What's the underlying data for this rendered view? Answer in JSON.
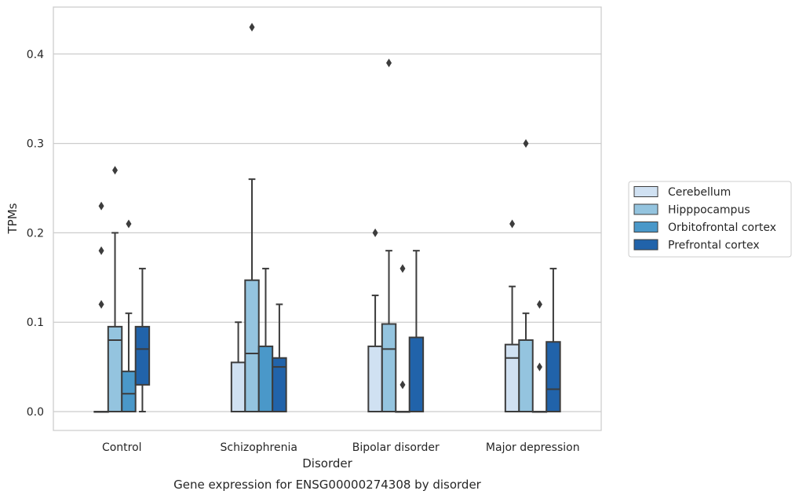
{
  "chart_data": {
    "type": "box",
    "caption": "Gene expression for ENSG00000274308 by disorder",
    "xlabel": "Disorder",
    "ylabel": "TPMs",
    "ylim": [
      -0.021,
      0.454
    ],
    "yticks": [
      "0.0",
      "0.1",
      "0.2",
      "0.3",
      "0.4"
    ],
    "grid": "horizontal",
    "legend_position": "right",
    "categories": [
      "Control",
      "Schizophrenia",
      "Bipolar disorder",
      "Major depression"
    ],
    "series": [
      {
        "name": "Cerebellum",
        "color": "#d0e1f2",
        "boxes": [
          {
            "q1": 0,
            "median": 0,
            "q3": 0,
            "whisker_low": 0,
            "whisker_high": 0,
            "outliers": [
              0.12,
              0.18,
              0.23
            ]
          },
          {
            "q1": 0,
            "median": 0,
            "q3": 0.055,
            "whisker_low": 0,
            "whisker_high": 0.1,
            "outliers": []
          },
          {
            "q1": 0,
            "median": 0,
            "q3": 0.073,
            "whisker_low": 0,
            "whisker_high": 0.13,
            "outliers": [
              0.2
            ]
          },
          {
            "q1": 0,
            "median": 0.06,
            "q3": 0.075,
            "whisker_low": 0,
            "whisker_high": 0.14,
            "outliers": [
              0.21
            ]
          }
        ]
      },
      {
        "name": "Hipppocampus",
        "color": "#94c4df",
        "boxes": [
          {
            "q1": 0,
            "median": 0.08,
            "q3": 0.095,
            "whisker_low": 0,
            "whisker_high": 0.2,
            "outliers": [
              0.27
            ]
          },
          {
            "q1": 0,
            "median": 0.065,
            "q3": 0.147,
            "whisker_low": 0,
            "whisker_high": 0.26,
            "outliers": [
              0.43
            ]
          },
          {
            "q1": 0,
            "median": 0.07,
            "q3": 0.098,
            "whisker_low": 0,
            "whisker_high": 0.18,
            "outliers": [
              0.39
            ]
          },
          {
            "q1": 0,
            "median": 0,
            "q3": 0.08,
            "whisker_low": 0,
            "whisker_high": 0.11,
            "outliers": [
              0.3
            ]
          }
        ]
      },
      {
        "name": "Orbitofrontal cortex",
        "color": "#4a98c9",
        "boxes": [
          {
            "q1": 0,
            "median": 0.02,
            "q3": 0.045,
            "whisker_low": 0,
            "whisker_high": 0.11,
            "outliers": [
              0.21
            ]
          },
          {
            "q1": 0,
            "median": 0,
            "q3": 0.073,
            "whisker_low": 0,
            "whisker_high": 0.16,
            "outliers": []
          },
          {
            "q1": 0,
            "median": 0,
            "q3": 0,
            "whisker_low": 0,
            "whisker_high": 0,
            "outliers": [
              0.03,
              0.16
            ]
          },
          {
            "q1": 0,
            "median": 0,
            "q3": 0,
            "whisker_low": 0,
            "whisker_high": 0,
            "outliers": [
              0.05,
              0.12
            ]
          }
        ]
      },
      {
        "name": "Prefrontal cortex",
        "color": "#2163aa",
        "boxes": [
          {
            "q1": 0.03,
            "median": 0.07,
            "q3": 0.095,
            "whisker_low": 0,
            "whisker_high": 0.16,
            "outliers": []
          },
          {
            "q1": 0,
            "median": 0.05,
            "q3": 0.06,
            "whisker_low": 0,
            "whisker_high": 0.12,
            "outliers": []
          },
          {
            "q1": 0,
            "median": 0,
            "q3": 0.083,
            "whisker_low": 0,
            "whisker_high": 0.18,
            "outliers": []
          },
          {
            "q1": 0,
            "median": 0.025,
            "q3": 0.078,
            "whisker_low": 0,
            "whisker_high": 0.16,
            "outliers": []
          }
        ]
      }
    ]
  }
}
